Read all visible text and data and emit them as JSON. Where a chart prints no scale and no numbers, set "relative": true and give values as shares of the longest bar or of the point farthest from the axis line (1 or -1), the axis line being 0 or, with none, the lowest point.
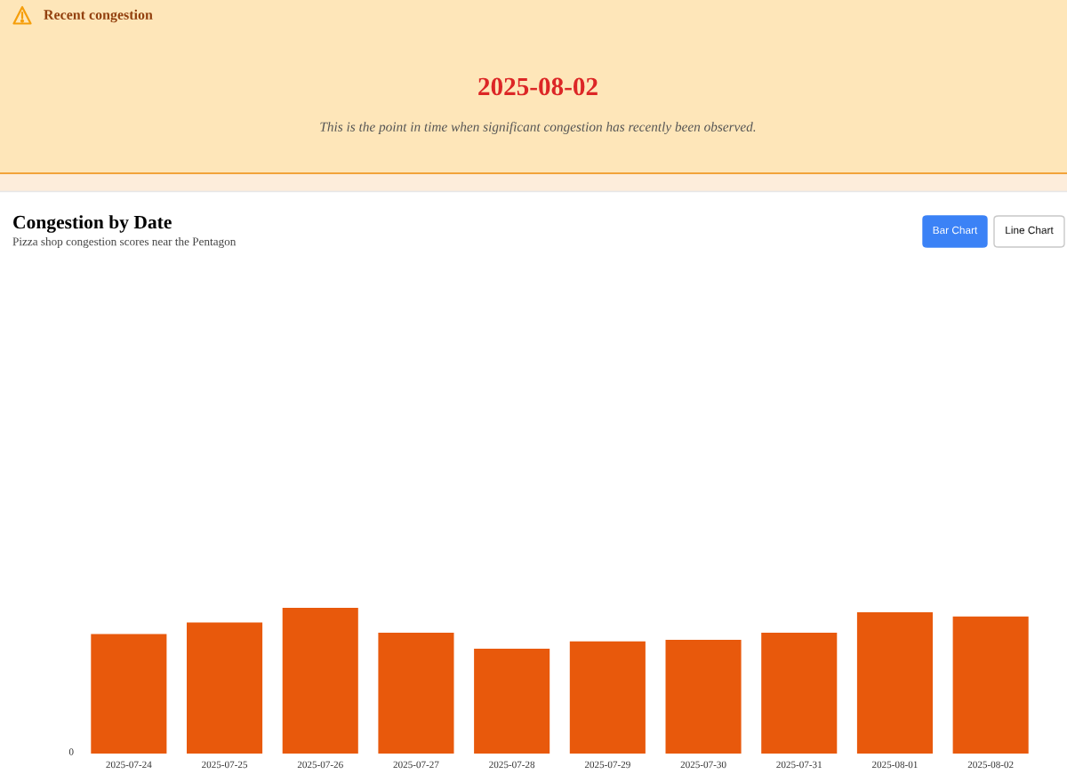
{
  "chart_data": {
    "type": "bar",
    "title": "Congestion by Date",
    "subtitle": "Pizza shop congestion scores near the Pentagon",
    "categories": [
      "2025-07-24",
      "2025-07-25",
      "2025-07-26",
      "2025-07-27",
      "2025-07-28",
      "2025-07-29",
      "2025-07-30",
      "2025-07-31",
      "2025-08-01",
      "2025-08-02"
    ],
    "values": [
      0.82,
      0.9,
      1,
      0.83,
      0.72,
      0.77,
      0.78,
      0.83,
      0.97,
      0.94
    ],
    "color": "#e8590c",
    "relative": true,
    "annotations": [
      "Recent congestion",
      "2025-08-02",
      "This is the point in time when significant congestion has recently been observed.",
      "Bar Chart",
      "Line Chart",
      "0"
    ]
  }
}
